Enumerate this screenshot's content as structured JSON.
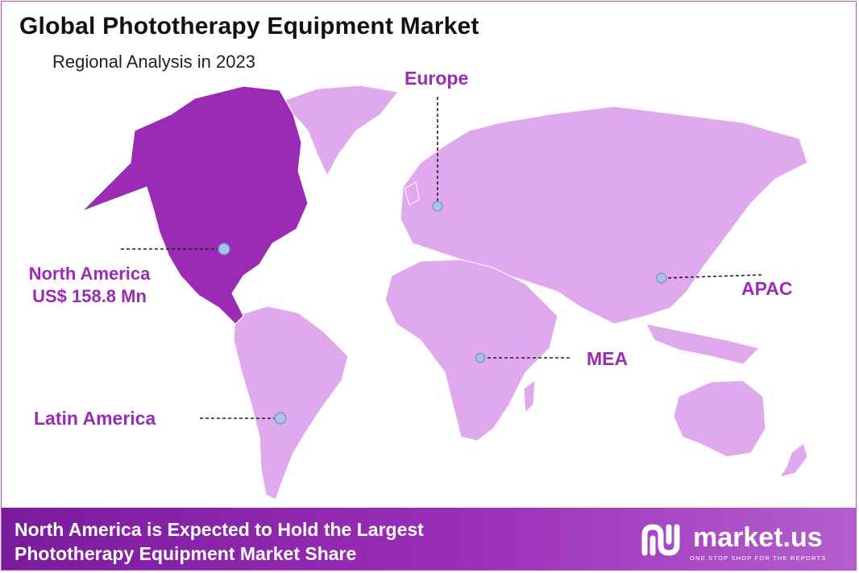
{
  "title": "Global Phototherapy Equipment Market",
  "subtitle": "Regional Analysis in 2023",
  "regions": {
    "europe": "Europe",
    "north_america": "North America",
    "north_america_value": "US$ 158.8 Mn",
    "apac": "APAC",
    "mea": "MEA",
    "latin_america": "Latin America"
  },
  "colors": {
    "highlight": "#9b2bb5",
    "land": "#e0a9ee",
    "marker": "#a9c1ec",
    "text_accent": "#9b2bb5"
  },
  "banner": {
    "line1": "North America is Expected to Hold the Largest",
    "line2": "Phototherapy Equipment Market Share"
  },
  "logo": {
    "name": "market.us",
    "tagline": "ONE STOP SHOP FOR THE REPORTS",
    "icon": "market-us-logo-icon"
  }
}
